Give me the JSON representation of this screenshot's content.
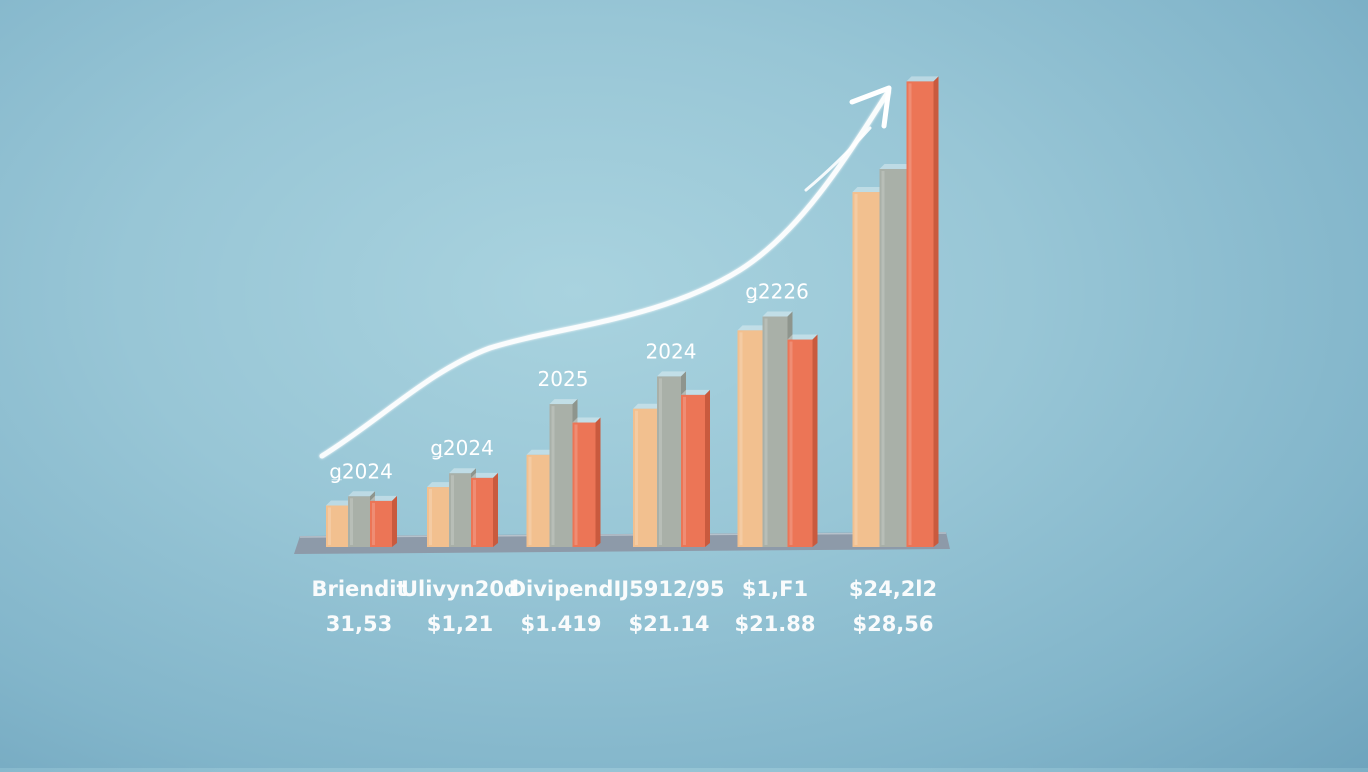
{
  "colors": {
    "background": "#98c6d6",
    "bar_peach": "#f2c08f",
    "bar_gray": "#a9b0a8",
    "bar_coral": "#ec7556",
    "base": "#8d9aa9",
    "text": "#ffffff",
    "arrow": "#ffffff"
  },
  "chart_data": {
    "type": "bar",
    "title": "",
    "xlabel": "",
    "ylabel": "",
    "legend": "none",
    "grid": false,
    "ylim": [
      0,
      100
    ],
    "trend_arrow": true,
    "categories": [
      "Briendit",
      "Ulivyn20d",
      "Divipend",
      "Ĳ5912/95",
      "$1,F1",
      "$24,2l2"
    ],
    "year_labels": [
      "ǥ2024",
      "ǥ2024",
      "2025",
      "2024",
      "ǥ2226",
      ""
    ],
    "value_labels": [
      "31,53",
      "$1,21",
      "$1.419",
      "$21.14",
      "$21.88",
      "$28,56"
    ],
    "series": [
      {
        "values": [
          9,
          13,
          20,
          30,
          47,
          77
        ]
      },
      {
        "values": [
          11,
          16,
          31,
          37,
          50,
          82
        ]
      },
      {
        "values": [
          10,
          15,
          27,
          33,
          45,
          101
        ]
      }
    ]
  }
}
